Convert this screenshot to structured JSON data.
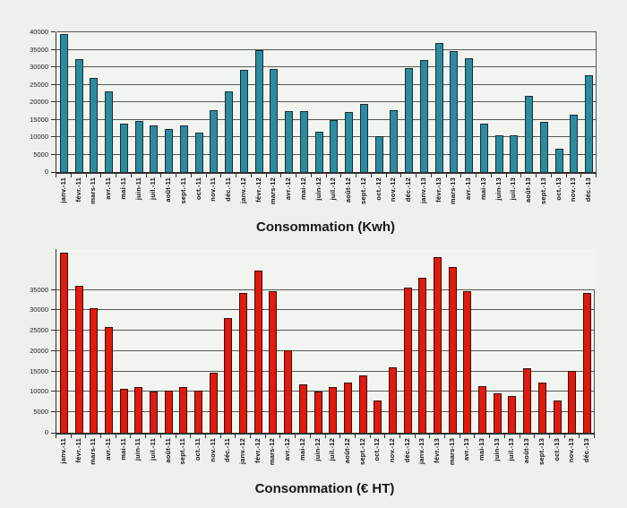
{
  "colors": {
    "page_background": "#eef0ec",
    "plot_background": "#f2f4f0",
    "gridline": "#555753",
    "axis": "#2f2f2f",
    "kwh_bar": "#2b8ca0",
    "kwh_bar_border": "#1b2d35",
    "eur_bar": "#e2190e",
    "eur_bar_border": "#36100a"
  },
  "chart_data": [
    {
      "type": "bar",
      "title": "Consommation (Kwh)",
      "xlabel": "",
      "ylabel": "",
      "ylim": [
        0,
        40000
      ],
      "ytick_step": 5000,
      "grid_max": 40000,
      "grid": true,
      "legend_position": "none",
      "bar_color": "#2b8ca0",
      "bar_border": "#1b2d35",
      "ytick_labels": [
        "0",
        "5000",
        "10000",
        "15000",
        "20000",
        "25000",
        "30000",
        "35000",
        "40000"
      ],
      "categories": [
        "janv.-11",
        "févr.-11",
        "mars-11",
        "avr.-11",
        "mai-11",
        "juin-11",
        "juil.-11",
        "août-11",
        "sept.-11",
        "oct.-11",
        "nov.-11",
        "déc.-11",
        "janv.-12",
        "févr.-12",
        "mars-12",
        "avr.-12",
        "mai-12",
        "juin-12",
        "juil.-12",
        "août-12",
        "sept.-12",
        "oct.-12",
        "nov.-12",
        "déc.-12",
        "janv.-13",
        "févr.-13",
        "mars-13",
        "avr.-13",
        "mai-13",
        "juin-13",
        "juil.-13",
        "août-13",
        "sept.-13",
        "oct.-13",
        "nov.-13",
        "déc.-13"
      ],
      "values": [
        39400,
        32300,
        27000,
        23100,
        13900,
        14500,
        13300,
        12400,
        13400,
        11400,
        17800,
        23100,
        29200,
        34900,
        29400,
        17500,
        17500,
        11500,
        14800,
        17100,
        19600,
        10200,
        17800,
        29700,
        32100,
        36900,
        34700,
        32500,
        13900,
        10400,
        10400,
        21800,
        14300,
        6700,
        16500,
        27800
      ]
    },
    {
      "type": "bar",
      "title": "Consommation (€ HT)",
      "xlabel": "",
      "ylabel": "",
      "ylim": [
        0,
        45000
      ],
      "ytick_step": 5000,
      "grid_max": 35000,
      "grid": true,
      "legend_position": "none",
      "bar_color": "#e2190e",
      "bar_border": "#36100a",
      "ytick_labels": [
        "0",
        "5000",
        "10000",
        "15000",
        "20000",
        "25000",
        "30000",
        "35000"
      ],
      "categories": [
        "janv.-11",
        "févr.-11",
        "mars-11",
        "avr.-11",
        "mai-11",
        "juin-11",
        "juil.-11",
        "août-11",
        "sept.-11",
        "oct.-11",
        "nov.-11",
        "déc.-11",
        "janv.-12",
        "févr.-12",
        "mars-12",
        "avr.-12",
        "mai-12",
        "juin-12",
        "juil.-12",
        "août-12",
        "sept.-12",
        "oct.-12",
        "nov.-12",
        "déc.-12",
        "janv.-13",
        "févr.-13",
        "mars-13",
        "avr.-13",
        "mai-13",
        "juin-13",
        "juil.-13",
        "août-13",
        "sept.-13",
        "oct.-13",
        "nov.-13",
        "déc.-13"
      ],
      "values": [
        44100,
        36000,
        30500,
        25900,
        10700,
        11200,
        10200,
        10300,
        11200,
        10300,
        14700,
        28100,
        34200,
        39700,
        34600,
        20200,
        11900,
        10200,
        11300,
        12400,
        14000,
        7900,
        16000,
        35500,
        38000,
        43000,
        40700,
        34600,
        11400,
        9700,
        9100,
        15700,
        12300,
        7900,
        15200,
        34200
      ]
    }
  ]
}
